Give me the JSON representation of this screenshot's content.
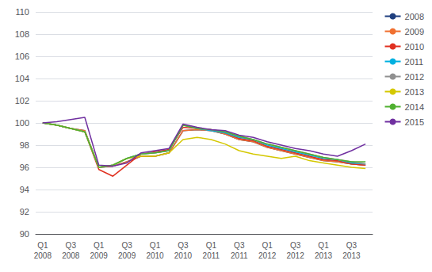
{
  "chart_data": {
    "type": "line",
    "categories": [
      "Q1\n2008",
      null,
      "Q3\n2008",
      null,
      "Q1\n2009",
      null,
      "Q3\n2009",
      null,
      "Q1\n2010",
      null,
      "Q3\n2010",
      null,
      "Q1\n2011",
      null,
      "Q3\n2011",
      null,
      "Q1\n2012",
      null,
      "Q3\n2012",
      null,
      "Q1\n2013",
      null,
      "Q3\n2013",
      null
    ],
    "series": [
      {
        "name": "2008",
        "color": "#1f3f7f",
        "values": [
          100.0,
          99.8,
          99.5,
          99.3,
          96.0,
          96.1,
          96.5,
          97.0,
          97.0,
          97.3,
          99.3,
          99.4,
          99.3,
          99.0,
          98.5,
          98.3,
          97.8,
          97.5,
          97.2,
          96.9,
          96.6,
          96.5,
          96.3,
          96.2
        ]
      },
      {
        "name": "2009",
        "color": "#f07030",
        "values": [
          100.0,
          99.8,
          99.5,
          99.3,
          96.0,
          96.1,
          96.5,
          97.0,
          97.0,
          97.3,
          99.3,
          99.4,
          99.3,
          99.0,
          98.5,
          98.3,
          97.8,
          97.5,
          97.2,
          96.9,
          96.6,
          96.5,
          96.3,
          96.2
        ]
      },
      {
        "name": "2010",
        "color": "#e03020",
        "values": [
          100.0,
          99.8,
          99.5,
          99.2,
          95.8,
          95.2,
          96.2,
          97.2,
          97.4,
          97.6,
          99.6,
          99.5,
          99.4,
          99.1,
          98.6,
          98.4,
          97.9,
          97.6,
          97.3,
          97.0,
          96.7,
          96.6,
          96.3,
          96.2
        ]
      },
      {
        "name": "2011",
        "color": "#00b0e0",
        "values": [
          100.0,
          99.8,
          99.5,
          99.2,
          96.0,
          96.2,
          96.8,
          97.2,
          97.3,
          97.5,
          99.8,
          99.5,
          99.3,
          99.1,
          98.7,
          98.5,
          98.0,
          97.7,
          97.4,
          97.1,
          96.8,
          96.7,
          96.4,
          96.3
        ]
      },
      {
        "name": "2012",
        "color": "#909090",
        "values": [
          100.0,
          99.8,
          99.5,
          99.2,
          96.0,
          96.2,
          96.8,
          97.2,
          97.3,
          97.5,
          99.8,
          99.5,
          99.4,
          99.2,
          98.8,
          98.5,
          98.1,
          97.8,
          97.5,
          97.2,
          96.9,
          96.7,
          96.5,
          96.3
        ]
      },
      {
        "name": "2013",
        "color": "#d4c800",
        "values": [
          100.0,
          99.8,
          99.5,
          99.2,
          96.0,
          96.2,
          96.8,
          97.0,
          97.0,
          97.3,
          98.5,
          98.7,
          98.5,
          98.1,
          97.5,
          97.2,
          97.0,
          96.8,
          97.0,
          96.6,
          96.4,
          96.2,
          96.0,
          95.9
        ]
      },
      {
        "name": "2014",
        "color": "#50b030",
        "values": [
          100.0,
          99.8,
          99.5,
          99.2,
          96.0,
          96.2,
          96.8,
          97.2,
          97.3,
          97.5,
          99.8,
          99.5,
          99.4,
          99.2,
          98.8,
          98.5,
          98.1,
          97.8,
          97.5,
          97.2,
          96.9,
          96.7,
          96.5,
          96.5
        ]
      },
      {
        "name": "2015",
        "color": "#7030a0",
        "values": [
          100.0,
          100.1,
          100.3,
          100.5,
          96.2,
          96.1,
          96.4,
          97.3,
          97.5,
          97.7,
          99.9,
          99.6,
          99.4,
          99.3,
          98.9,
          98.7,
          98.3,
          98.0,
          97.7,
          97.5,
          97.2,
          97.0,
          97.5,
          98.1
        ]
      }
    ],
    "ylim": [
      90,
      110
    ],
    "yticks": [
      90,
      92,
      94,
      96,
      98,
      100,
      102,
      104,
      106,
      108,
      110
    ],
    "grid": true,
    "legend": "right"
  }
}
